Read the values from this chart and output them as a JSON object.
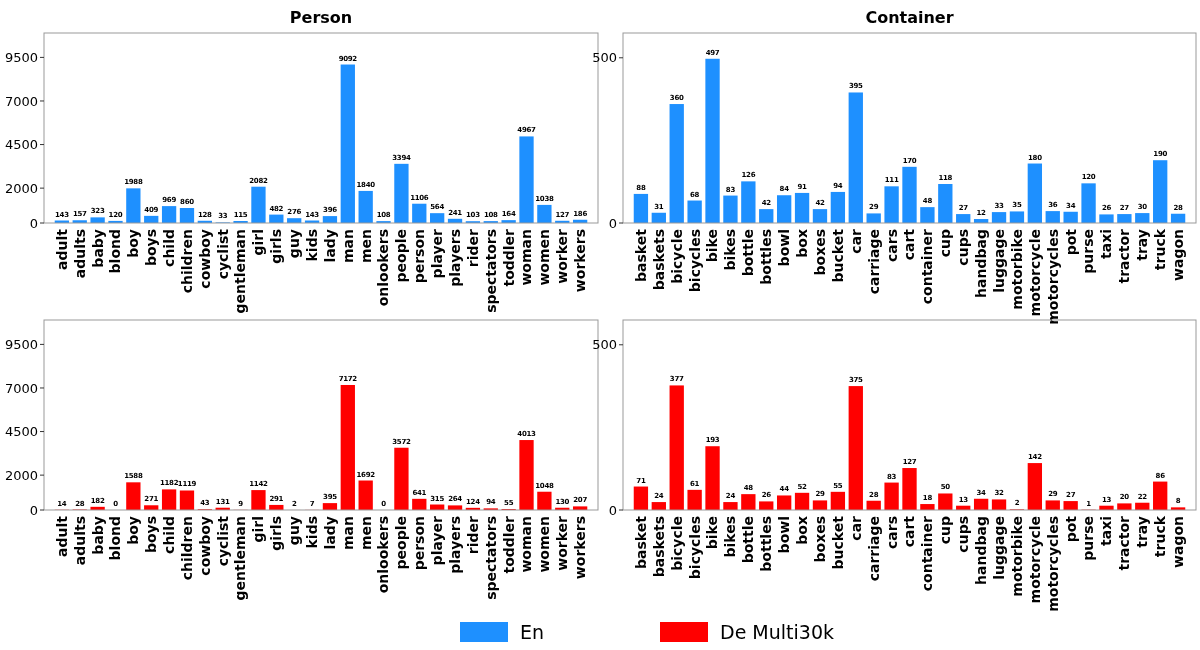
{
  "chart_data": [
    {
      "type": "bar",
      "title": "Person",
      "categories": [
        "adult",
        "adults",
        "baby",
        "blond",
        "boy",
        "boys",
        "child",
        "children",
        "cowboy",
        "cyclist",
        "gentleman",
        "girl",
        "girls",
        "guy",
        "kids",
        "lady",
        "man",
        "men",
        "onlookers",
        "people",
        "person",
        "player",
        "players",
        "rider",
        "spectators",
        "toddler",
        "woman",
        "women",
        "worker",
        "workers"
      ],
      "series": [
        {
          "name": "En",
          "color": "#1e90ff",
          "values": [
            143,
            157,
            323,
            120,
            1988,
            409,
            969,
            860,
            128,
            33,
            115,
            2082,
            482,
            276,
            143,
            396,
            9092,
            1840,
            108,
            3394,
            1106,
            564,
            241,
            103,
            108,
            164,
            4967,
            1038,
            127,
            186
          ]
        }
      ],
      "ylim": [
        0,
        10900
      ],
      "yticks": [
        0,
        2000,
        4500,
        7000,
        9500
      ],
      "data_labels": true,
      "legend": "bottom",
      "grid": false
    },
    {
      "type": "bar",
      "title": "Container",
      "categories": [
        "basket",
        "baskets",
        "bicycle",
        "bicycles",
        "bike",
        "bikes",
        "bottle",
        "bottles",
        "bowl",
        "box",
        "boxes",
        "bucket",
        "car",
        "carriage",
        "cars",
        "cart",
        "container",
        "cup",
        "cups",
        "handbag",
        "luggage",
        "motorbike",
        "motorcycle",
        "motorcycles",
        "pot",
        "purse",
        "taxi",
        "tractor",
        "tray",
        "truck",
        "wagon"
      ],
      "series": [
        {
          "color": "#1e90ff",
          "values": [
            88,
            31,
            360,
            68,
            497,
            83,
            126,
            42,
            84,
            91,
            42,
            94,
            395,
            29,
            111,
            170,
            48,
            118,
            27,
            12,
            33,
            35,
            180,
            36,
            34,
            120,
            26,
            27,
            30,
            190,
            28
          ]
        }
      ],
      "ylim": [
        0,
        575
      ],
      "yticks": [
        0,
        500
      ],
      "data_labels": true,
      "grid": false
    },
    {
      "type": "bar",
      "categories": [
        "adult",
        "adults",
        "baby",
        "blond",
        "boy",
        "boys",
        "child",
        "children",
        "cowboy",
        "cyclist",
        "gentleman",
        "girl",
        "girls",
        "guy",
        "kids",
        "lady",
        "man",
        "men",
        "onlookers",
        "people",
        "person",
        "player",
        "players",
        "rider",
        "spectators",
        "toddler",
        "woman",
        "women",
        "worker",
        "workers"
      ],
      "series": [
        {
          "name": "De Multi30k",
          "color": "#ff0000",
          "values": [
            14,
            28,
            182,
            0,
            1588,
            271,
            1182,
            1119,
            43,
            131,
            9,
            1142,
            291,
            2,
            7,
            395,
            7172,
            1692,
            0,
            3572,
            641,
            315,
            264,
            124,
            94,
            55,
            4013,
            1048,
            130,
            207
          ]
        }
      ],
      "ylim": [
        0,
        10900
      ],
      "yticks": [
        0,
        2000,
        4500,
        7000,
        9500
      ],
      "data_labels": true,
      "legend": "bottom",
      "grid": false
    },
    {
      "type": "bar",
      "categories": [
        "basket",
        "baskets",
        "bicycle",
        "bicycles",
        "bike",
        "bikes",
        "bottle",
        "bottles",
        "bowl",
        "box",
        "boxes",
        "bucket",
        "car",
        "carriage",
        "cars",
        "cart",
        "container",
        "cup",
        "cups",
        "handbag",
        "luggage",
        "motorbike",
        "motorcycle",
        "motorcycles",
        "pot",
        "purse",
        "taxi",
        "tractor",
        "tray",
        "truck",
        "wagon"
      ],
      "series": [
        {
          "color": "#ff0000",
          "values": [
            71,
            24,
            377,
            61,
            193,
            24,
            48,
            26,
            44,
            52,
            29,
            55,
            375,
            28,
            83,
            127,
            18,
            50,
            13,
            34,
            32,
            2,
            142,
            29,
            27,
            1,
            13,
            20,
            22,
            86,
            8
          ]
        }
      ],
      "ylim": [
        0,
        575
      ],
      "yticks": [
        0,
        500
      ],
      "data_labels": true,
      "grid": false
    }
  ]
}
